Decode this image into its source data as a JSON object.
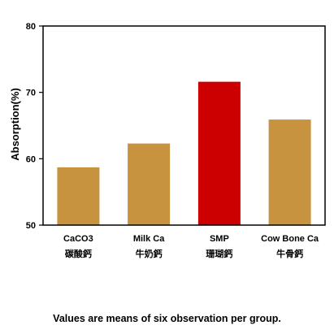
{
  "chart_data": {
    "type": "bar",
    "categories": [
      "CaCO3",
      "Milk Ca",
      "SMP",
      "Cow Bone Ca"
    ],
    "category_sublabels": [
      "碳酸鈣",
      "牛奶鈣",
      "珊瑚鈣",
      "牛骨鈣"
    ],
    "values": [
      58.7,
      62.3,
      71.6,
      65.9
    ],
    "bar_colors": [
      "#c8933f",
      "#c8933f",
      "#cc0000",
      "#c8933f"
    ],
    "title": "",
    "xlabel": "",
    "ylabel": "Absorption(%)",
    "ylim": [
      50,
      80
    ],
    "yticks": [
      50,
      60,
      70,
      80
    ],
    "grid": false,
    "legend": "none"
  },
  "footnote": "Values are means of six observation per group."
}
